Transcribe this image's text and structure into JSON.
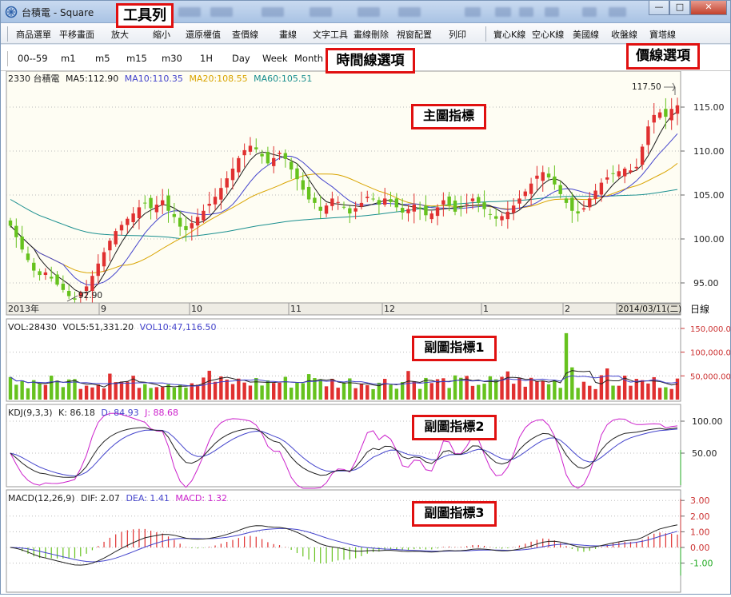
{
  "window": {
    "title": "台積電 - Square",
    "minimize": "—",
    "maximize": "□",
    "close": "✕"
  },
  "toolbar": {
    "items": [
      "商品選單",
      "平移畫面",
      "放大",
      "縮小",
      "還原權值",
      "查價線",
      "畫線",
      "文字工具",
      "畫線刪除",
      "視窗配置",
      "列印",
      "實心K線",
      "空心K線",
      "美國線",
      "收盤線",
      "寶塔線"
    ]
  },
  "timebar": {
    "items": [
      "00--59",
      "m1",
      "m5",
      "m15",
      "m30",
      "1H",
      "Day",
      "Week",
      "Month"
    ]
  },
  "callouts": {
    "toolbar": "工具列",
    "time": "時間線選項",
    "price": "價線選項",
    "main": "主圖指標",
    "sub1": "副圖指標1",
    "sub2": "副圖指標2",
    "sub3": "副圖指標3"
  },
  "main_chart": {
    "legend_name": "2330 台積電",
    "ma5": "MA5:112.90",
    "ma10": "MA10:110.35",
    "ma20": "MA20:108.55",
    "ma60": "MA60:105.51",
    "high_label": "117.50",
    "low_label": "92.90",
    "y_ticks": [
      "115.00",
      "110.00",
      "105.00",
      "100.00",
      "95.00"
    ],
    "x_labels": [
      "2013年",
      "9",
      "10",
      "11",
      "12",
      "1",
      "2"
    ],
    "cursor_date": "2014/03/11(二)",
    "period": "日線",
    "colors": {
      "ma5": "#1a1a1a",
      "ma10": "#4444cc",
      "ma20": "#d9a400",
      "ma60": "#1a8f8f",
      "up": "#e03030",
      "down": "#66c21e",
      "bg": "#fefdf3"
    }
  },
  "volume_chart": {
    "legend_vol": "VOL:28430",
    "legend_vol5": "VOL5:51,331.20",
    "legend_vol10": "VOL10:47,116.50",
    "y_ticks": [
      "150,000.00",
      "100,000.00",
      "50,000.00"
    ]
  },
  "kdj_chart": {
    "legend_name": "KDJ(9,3,3)",
    "k": "K: 86.18",
    "d": "D: 84.93",
    "j": "J: 88.68",
    "y_ticks": [
      "100.00",
      "50.00"
    ]
  },
  "macd_chart": {
    "legend_name": "MACD(12,26,9)",
    "dif": "DIF: 2.07",
    "dea": "DEA: 1.41",
    "macd": "MACD: 1.32",
    "y_ticks": [
      "3.00",
      "2.00",
      "1.00",
      "0.00",
      "-1.00"
    ]
  },
  "chart_data": [
    {
      "type": "candlestick",
      "title": "2330 台積電",
      "period": "日線",
      "ylim": [
        92,
        119
      ],
      "closes": [
        101.5,
        100.2,
        98.8,
        97.6,
        96.4,
        95.9,
        96.2,
        95.5,
        94.8,
        94.2,
        93.5,
        93.1,
        93.9,
        94.6,
        95.8,
        97.2,
        98.5,
        99.8,
        100.9,
        101.6,
        102.3,
        102.9,
        103.6,
        104.1,
        103.5,
        103.9,
        104.4,
        103.2,
        102.5,
        101.4,
        101.0,
        101.8,
        102.5,
        103.2,
        104.0,
        104.8,
        105.8,
        106.9,
        108.0,
        109.2,
        110.1,
        110.6,
        110.2,
        109.4,
        108.6,
        109.2,
        109.8,
        109.1,
        107.9,
        106.8,
        105.6,
        104.5,
        104.1,
        103.2,
        103.8,
        104.6,
        104.2,
        103.6,
        102.9,
        103.5,
        104.1,
        104.8,
        104.5,
        103.9,
        104.6,
        104.2,
        103.6,
        103.0,
        103.4,
        103.9,
        103.5,
        102.7,
        102.9,
        103.6,
        104.4,
        103.8,
        103.1,
        103.5,
        104.0,
        104.6,
        104.1,
        103.4,
        102.8,
        102.3,
        102.6,
        103.1,
        103.8,
        104.6,
        105.4,
        106.3,
        107.2,
        107.6,
        107.0,
        106.2,
        105.1,
        104.1,
        103.2,
        102.9,
        103.5,
        104.6,
        105.5,
        106.4,
        107.0,
        107.4,
        107.7,
        108.0,
        107.8,
        108.2,
        110.5,
        112.8,
        114.1,
        114.4,
        113.9,
        114.8,
        115.2
      ],
      "ma_legend": {
        "MA5": 112.9,
        "MA10": 110.35,
        "MA20": 108.55,
        "MA60": 105.51
      },
      "high": 117.5,
      "low": 92.9
    },
    {
      "type": "bar",
      "title": "VOL",
      "ylim": [
        0,
        160000
      ],
      "latest": 28430
    },
    {
      "type": "line",
      "title": "KDJ(9,3,3)",
      "ylim": [
        0,
        120
      ],
      "latest": {
        "K": 86.18,
        "D": 84.93,
        "J": 88.68
      }
    },
    {
      "type": "bar+line",
      "title": "MACD(12,26,9)",
      "ylim": [
        -1.8,
        3.2
      ],
      "latest": {
        "DIF": 2.07,
        "DEA": 1.41,
        "MACD": 1.32
      }
    }
  ]
}
